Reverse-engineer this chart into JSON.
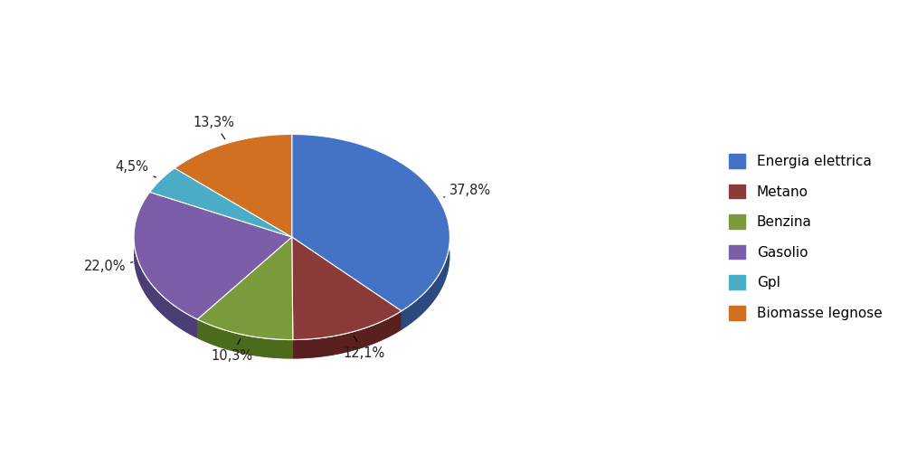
{
  "labels": [
    "Energia elettrica",
    "Metano",
    "Benzina",
    "Gasolio",
    "Gpl",
    "Biomasse legnose"
  ],
  "values": [
    37.8,
    12.1,
    10.3,
    22.0,
    4.5,
    13.3
  ],
  "colors": [
    "#4472C4",
    "#8B3A3A",
    "#7A9B3C",
    "#7B5EA7",
    "#4BACC6",
    "#D07020"
  ],
  "dark_colors": [
    "#2A4A80",
    "#5A2020",
    "#4A6A1C",
    "#4B3E77",
    "#2A7A96",
    "#905010"
  ],
  "label_texts": [
    "37,8%",
    "12,1%",
    "10,3%",
    "22,0%",
    "4,5%",
    "13,3%"
  ],
  "background_color": "#ffffff",
  "legend_fontsize": 11,
  "startangle": 90,
  "depth": 0.12,
  "n_depth_layers": 15
}
